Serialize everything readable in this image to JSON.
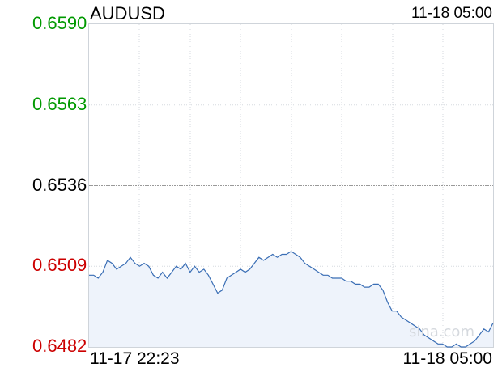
{
  "chart_data": {
    "type": "area",
    "title": "AUDUSD",
    "timestamp": "11-18 05:00",
    "x_start_label": "11-17 22:23",
    "x_end_label": "11-18 05:00",
    "y_ticks": [
      {
        "label": "0.6590",
        "value": 0.659,
        "color": "#009900"
      },
      {
        "label": "0.6563",
        "value": 0.6563,
        "color": "#009900"
      },
      {
        "label": "0.6536",
        "value": 0.6536,
        "color": "#000000"
      },
      {
        "label": "0.6509",
        "value": 0.6509,
        "color": "#cc0000"
      },
      {
        "label": "0.6482",
        "value": 0.6482,
        "color": "#cc0000"
      }
    ],
    "ylim": [
      0.6482,
      0.659
    ],
    "reference_value": 0.6536,
    "grid": true,
    "line_color": "#3a6eb5",
    "fill_color": "#eef3fb",
    "watermark": "sina.com",
    "series": [
      {
        "values": [
          0.6506,
          0.6506,
          0.6505,
          0.6507,
          0.6511,
          0.651,
          0.6508,
          0.6509,
          0.651,
          0.6512,
          0.651,
          0.6509,
          0.651,
          0.6509,
          0.6506,
          0.6505,
          0.6507,
          0.6505,
          0.6507,
          0.6509,
          0.6508,
          0.651,
          0.6507,
          0.6509,
          0.6507,
          0.6508,
          0.6506,
          0.6503,
          0.65,
          0.6501,
          0.6505,
          0.6506,
          0.6507,
          0.6508,
          0.6507,
          0.6508,
          0.651,
          0.6512,
          0.6511,
          0.6512,
          0.6513,
          0.6512,
          0.6513,
          0.6513,
          0.6514,
          0.6513,
          0.6512,
          0.651,
          0.6509,
          0.6508,
          0.6507,
          0.6506,
          0.6506,
          0.6505,
          0.6505,
          0.6505,
          0.6504,
          0.6504,
          0.6503,
          0.6503,
          0.6502,
          0.6502,
          0.6503,
          0.6503,
          0.6501,
          0.6497,
          0.6494,
          0.6494,
          0.6492,
          0.6491,
          0.649,
          0.6489,
          0.6488,
          0.6486,
          0.6485,
          0.6484,
          0.6483,
          0.6483,
          0.6482,
          0.6482,
          0.6483,
          0.6482,
          0.6482,
          0.6483,
          0.6484,
          0.6486,
          0.6488,
          0.6487,
          0.649
        ]
      }
    ]
  }
}
